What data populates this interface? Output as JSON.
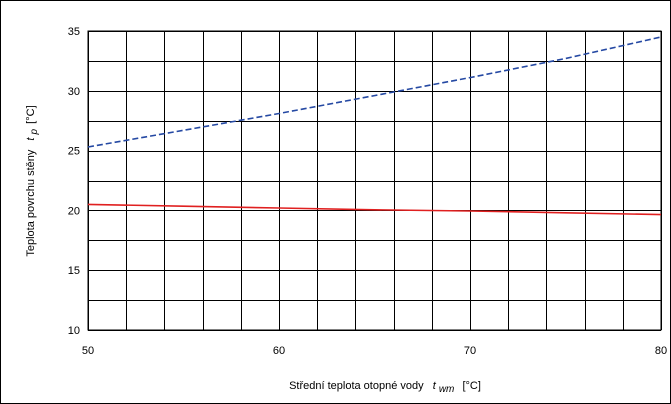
{
  "chart_data": {
    "type": "line",
    "xlabel": {
      "prefix": "Střední teplota otopné vody",
      "symbol": "t",
      "subscript": "wm",
      "unit": "[°C]"
    },
    "ylabel": {
      "prefix": "Teplota povrchu stěny",
      "symbol": "t",
      "subscript": "p",
      "unit": "[°C]"
    },
    "xlim": [
      50,
      80
    ],
    "ylim": [
      10,
      35
    ],
    "x_ticks": [
      "50",
      "60",
      "70",
      "80"
    ],
    "y_ticks": [
      "10",
      "15",
      "20",
      "25",
      "30",
      "35"
    ],
    "grid": true,
    "series": [
      {
        "style": "dashed",
        "color": "#2549a3",
        "x": [
          50,
          55,
          60,
          65,
          70,
          75,
          80
        ],
        "y": [
          25.3,
          26.7,
          28.1,
          29.6,
          31.1,
          32.7,
          34.5
        ]
      },
      {
        "style": "solid",
        "color": "#e02020",
        "x": [
          50,
          55,
          60,
          65,
          70,
          75,
          80
        ],
        "y": [
          20.5,
          20.35,
          20.2,
          20.05,
          19.95,
          19.8,
          19.65
        ]
      }
    ]
  }
}
